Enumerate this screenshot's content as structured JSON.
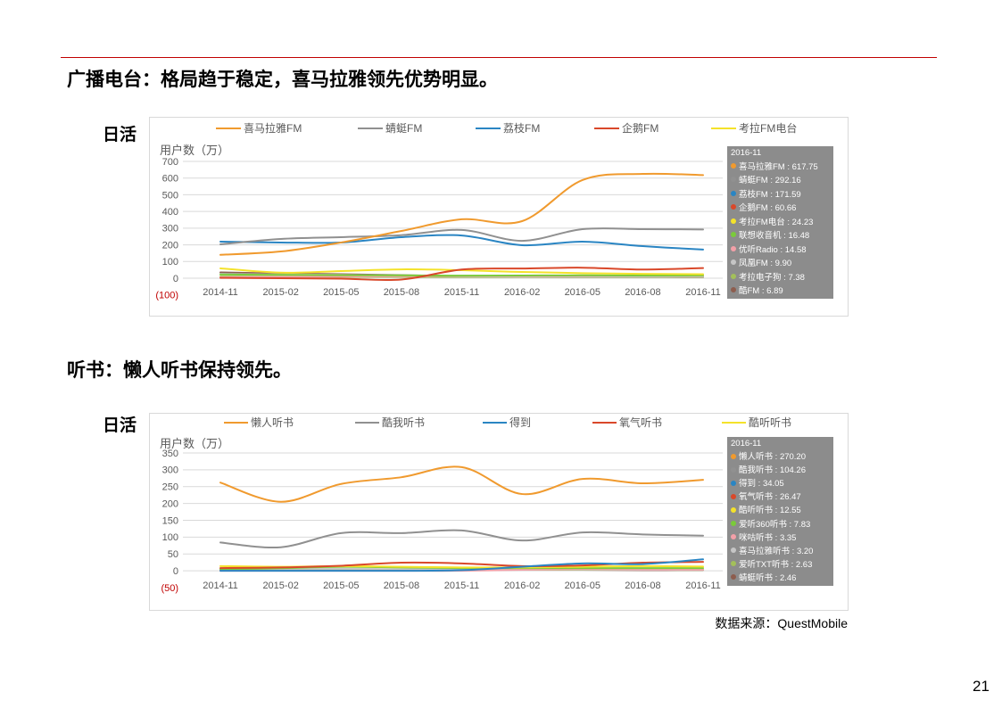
{
  "page": {
    "section1_title": "广播电台：格局趋于稳定，喜马拉雅领先优势明显。",
    "section1_metric": "日活",
    "section2_title": "听书：懒人听书保持领先。",
    "section2_metric": "日活",
    "source": "数据来源：QuestMobile",
    "page_number": "21"
  },
  "colors": {
    "rule": "#C00000",
    "negative_tick": "#C00000",
    "tooltip_bg": "#8C8C8C",
    "grid": "#D9D9D9"
  },
  "chart_data": [
    {
      "type": "line",
      "title": "",
      "xlabel": "",
      "ylabel": "用户数（万）",
      "grid": true,
      "categories": [
        "2014-11",
        "2015-02",
        "2015-05",
        "2015-08",
        "2015-11",
        "2016-02",
        "2016-05",
        "2016-08",
        "2016-11"
      ],
      "ylim": [
        -100,
        700
      ],
      "yticks": [
        700,
        600,
        500,
        400,
        300,
        200,
        100,
        0,
        -100
      ],
      "ytick_labels": [
        "700",
        "600",
        "500",
        "400",
        "300",
        "200",
        "100",
        "0",
        "(100)"
      ],
      "legend": [
        "喜马拉雅FM",
        "蜻蜓FM",
        "荔枝FM",
        "企鹅FM",
        "考拉FM电台"
      ],
      "tooltip": {
        "title": "2016-11",
        "separator": " : ",
        "values": [
          "617.75",
          "292.16",
          "171.59",
          "60.66",
          "24.23",
          "16.48",
          "14.58",
          "9.90",
          "7.38",
          "6.89"
        ]
      },
      "series": [
        {
          "name": "喜马拉雅FM",
          "color": "#F09A2E",
          "values": [
            140,
            160,
            214,
            283,
            353,
            342,
            588,
            625,
            617.75
          ]
        },
        {
          "name": "蜻蜓FM",
          "color": "#909090",
          "values": [
            203,
            235,
            246,
            258,
            289,
            224,
            294,
            294,
            292.16
          ]
        },
        {
          "name": "荔枝FM",
          "color": "#2A85C3",
          "values": [
            219,
            214,
            214,
            246,
            256,
            198,
            219,
            192,
            171.59
          ]
        },
        {
          "name": "企鹅FM",
          "color": "#D9482A",
          "values": [
            2,
            0,
            -3,
            -8,
            52,
            58,
            63,
            52,
            60.66
          ]
        },
        {
          "name": "考拉FM电台",
          "color": "#F4E22A",
          "values": [
            59,
            33,
            43,
            53,
            48,
            37,
            30,
            26,
            24.23
          ]
        },
        {
          "name": "联想收音机",
          "color": "#7ACB3A",
          "values": [
            22,
            20,
            18,
            17,
            15,
            16,
            17,
            16,
            16.48
          ]
        },
        {
          "name": "优听Radio",
          "color": "#F3A0A8",
          "values": [
            6,
            8,
            10,
            12,
            14,
            13,
            14,
            15,
            14.58
          ]
        },
        {
          "name": "凤凰FM",
          "color": "#C6C6C6",
          "values": [
            26,
            22,
            20,
            15,
            12,
            10,
            10,
            10,
            9.9
          ]
        },
        {
          "name": "考拉电子狗",
          "color": "#A3C05A",
          "values": [
            10,
            9,
            8,
            8,
            7,
            7,
            7,
            7,
            7.38
          ]
        },
        {
          "name": "酷FM",
          "color": "#8D5D4E",
          "values": [
            35,
            28,
            24,
            18,
            12,
            8,
            7,
            7,
            6.89
          ]
        }
      ]
    },
    {
      "type": "line",
      "title": "",
      "xlabel": "",
      "ylabel": "用户数（万）",
      "grid": true,
      "categories": [
        "2014-11",
        "2015-02",
        "2015-05",
        "2015-08",
        "2015-11",
        "2016-02",
        "2016-05",
        "2016-08",
        "2016-11"
      ],
      "ylim": [
        -50,
        350
      ],
      "yticks": [
        350,
        300,
        250,
        200,
        150,
        100,
        50,
        0,
        -50
      ],
      "ytick_labels": [
        "350",
        "300",
        "250",
        "200",
        "150",
        "100",
        "50",
        "0",
        "(50)"
      ],
      "legend": [
        "懒人听书",
        "酷我听书",
        "得到",
        "氧气听书",
        "酷听听书"
      ],
      "tooltip": {
        "title": "2016-11",
        "separator": " : ",
        "values": [
          "270.20",
          "104.26",
          "34.05",
          "26.47",
          "12.55",
          "7.83",
          "3.35",
          "3.20",
          "2.63",
          "2.46"
        ]
      },
      "series": [
        {
          "name": "懒人听书",
          "color": "#F09A2E",
          "values": [
            262,
            205,
            258,
            278,
            308,
            228,
            273,
            260,
            270.2
          ]
        },
        {
          "name": "酷我听书",
          "color": "#909090",
          "values": [
            84,
            70,
            112,
            112,
            120,
            90,
            114,
            108,
            104.26
          ]
        },
        {
          "name": "得到",
          "color": "#2A85C3",
          "values": [
            0,
            0,
            0,
            0,
            2,
            12,
            22,
            20,
            34.05
          ]
        },
        {
          "name": "氧气听书",
          "color": "#D9482A",
          "values": [
            8,
            10,
            15,
            24,
            22,
            14,
            16,
            24,
            26.47
          ]
        },
        {
          "name": "酷听听书",
          "color": "#F4E22A",
          "values": [
            14,
            12,
            14,
            12,
            10,
            10,
            12,
            14,
            12.55
          ]
        },
        {
          "name": "爱听360听书",
          "color": "#7ACB3A",
          "values": [
            5,
            8,
            12,
            10,
            8,
            8,
            8,
            8,
            7.83
          ]
        },
        {
          "name": "咪咕听书",
          "color": "#F3A0A8",
          "values": [
            0,
            0,
            0,
            0,
            0,
            3,
            5,
            4,
            3.35
          ]
        },
        {
          "name": "喜马拉雅听书",
          "color": "#C6C6C6",
          "values": [
            8,
            6,
            6,
            5,
            5,
            4,
            4,
            3,
            3.2
          ]
        },
        {
          "name": "爱听TXT听书",
          "color": "#A3C05A",
          "values": [
            6,
            5,
            5,
            4,
            4,
            3,
            3,
            3,
            2.63
          ]
        },
        {
          "name": "蜻蜓听书",
          "color": "#8D5D4E",
          "values": [
            2,
            2,
            3,
            3,
            3,
            3,
            3,
            2,
            2.46
          ]
        }
      ]
    }
  ]
}
